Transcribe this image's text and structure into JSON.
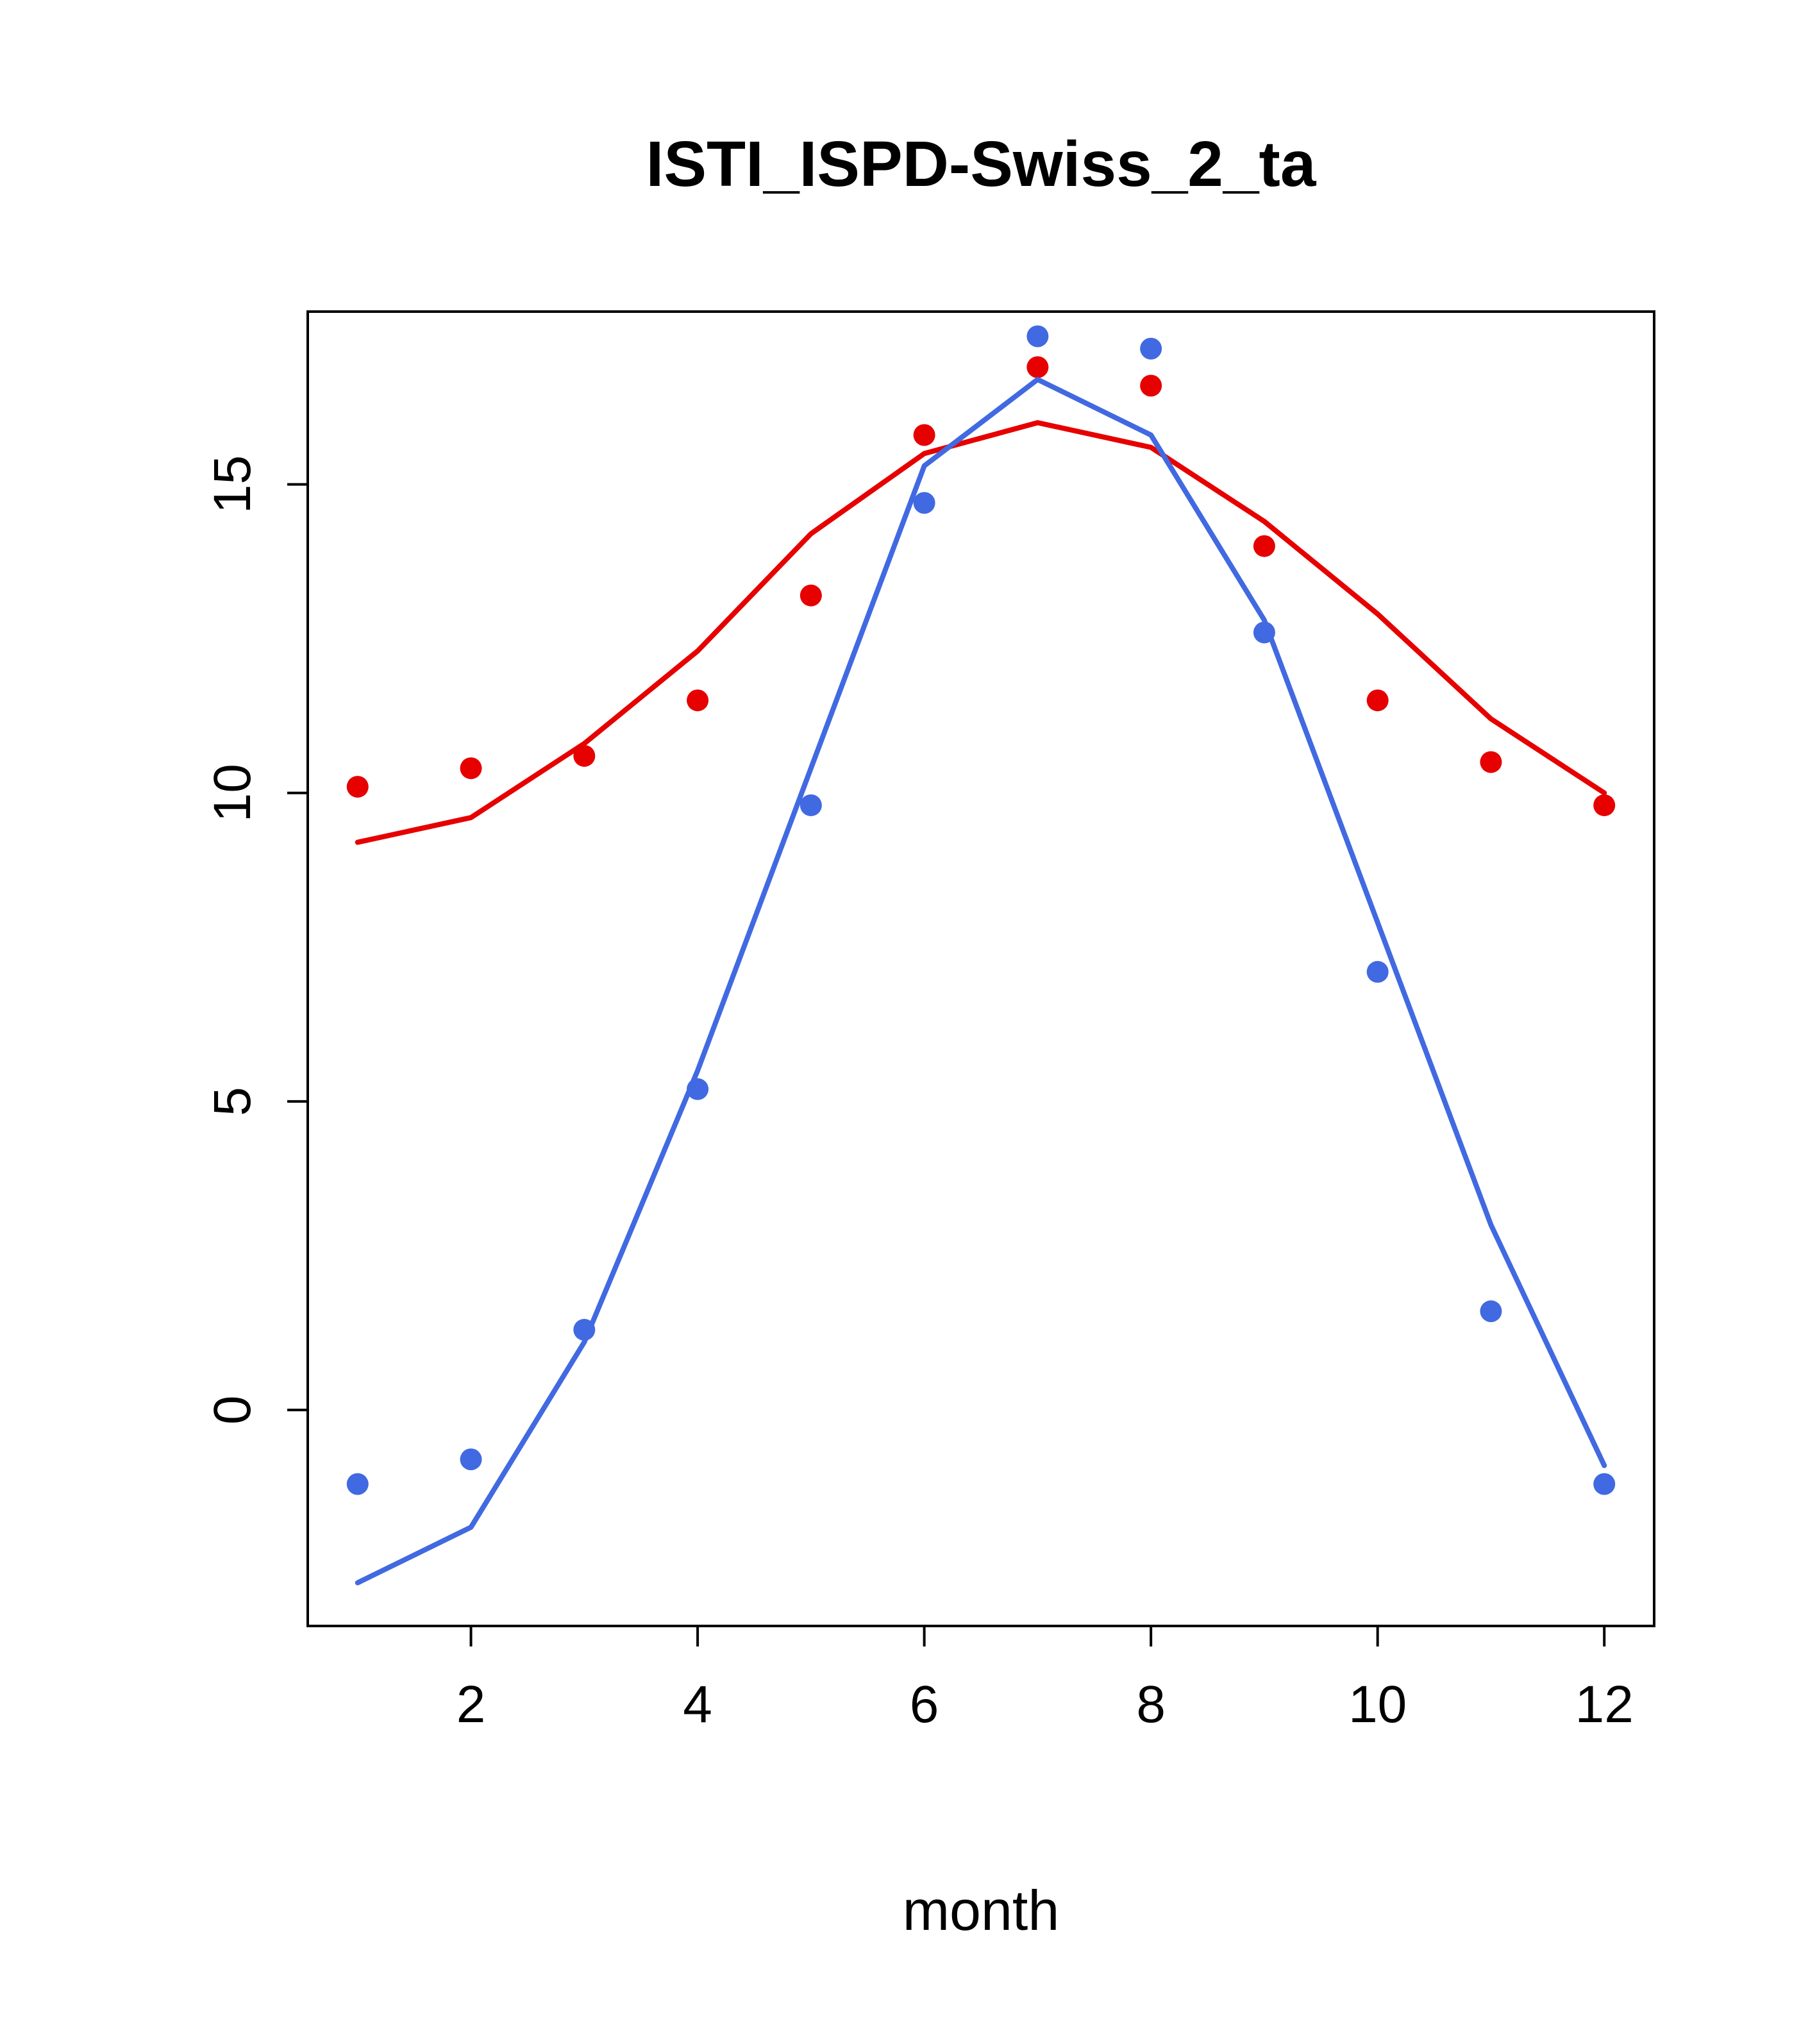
{
  "title": "ISTI_ISPD-Swiss_2_ta",
  "xlabel": "month",
  "colors": {
    "red_series": "#e60000",
    "blue_series": "#4169e1",
    "axis": "#000000",
    "background": "#ffffff"
  },
  "chart_data": {
    "type": "line",
    "title": "ISTI_ISPD-Swiss_2_ta",
    "xlabel": "month",
    "ylabel": "",
    "x": [
      1,
      2,
      3,
      4,
      5,
      6,
      7,
      8,
      9,
      10,
      11,
      12
    ],
    "x_ticks": [
      2,
      4,
      6,
      8,
      10,
      12
    ],
    "y_ticks": [
      0,
      5,
      10,
      15
    ],
    "xlim": [
      0.56,
      12.44
    ],
    "ylim": [
      -3.5,
      17.8
    ],
    "grid": false,
    "legend": "none",
    "series": [
      {
        "name": "red-climatology-line",
        "render": "line",
        "color": "#e60000",
        "values": [
          9.2,
          9.6,
          10.8,
          12.3,
          14.2,
          15.5,
          16.0,
          15.6,
          14.4,
          12.9,
          11.2,
          10.0
        ]
      },
      {
        "name": "red-observed-points",
        "render": "scatter",
        "color": "#e60000",
        "values": [
          10.1,
          10.4,
          10.6,
          11.5,
          13.2,
          15.8,
          16.9,
          16.6,
          14.0,
          11.5,
          10.5,
          9.8
        ]
      },
      {
        "name": "blue-climatology-line",
        "render": "line",
        "color": "#4169e1",
        "values": [
          -2.8,
          -1.9,
          1.1,
          5.5,
          10.4,
          15.3,
          16.7,
          15.8,
          12.8,
          7.9,
          3.0,
          -0.9
        ]
      },
      {
        "name": "blue-observed-points",
        "render": "scatter",
        "color": "#4169e1",
        "values": [
          -1.2,
          -0.8,
          1.3,
          5.2,
          9.8,
          14.7,
          17.4,
          17.2,
          12.6,
          7.1,
          1.6,
          -1.2
        ]
      }
    ]
  }
}
